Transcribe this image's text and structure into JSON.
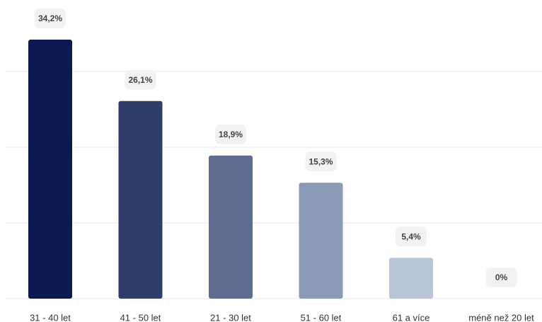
{
  "chart_data": {
    "type": "bar",
    "categories": [
      "31 - 40 let",
      "41 - 50 let",
      "21 - 30 let",
      "51 - 60 let",
      "61 a více",
      "méně než 20 let"
    ],
    "values": [
      34.2,
      26.1,
      18.9,
      15.3,
      5.4,
      0
    ],
    "value_labels": [
      "34,2%",
      "26,1%",
      "18,9%",
      "15,3%",
      "5,4%",
      "0%"
    ],
    "colors": [
      "#0b1b52",
      "#2e3d69",
      "#5d6c8f",
      "#8a9ab7",
      "#b8c5d9",
      "#d5dce8"
    ],
    "ylim": [
      0,
      40
    ],
    "yticks": [
      0,
      10,
      20,
      30
    ],
    "grid": true
  }
}
